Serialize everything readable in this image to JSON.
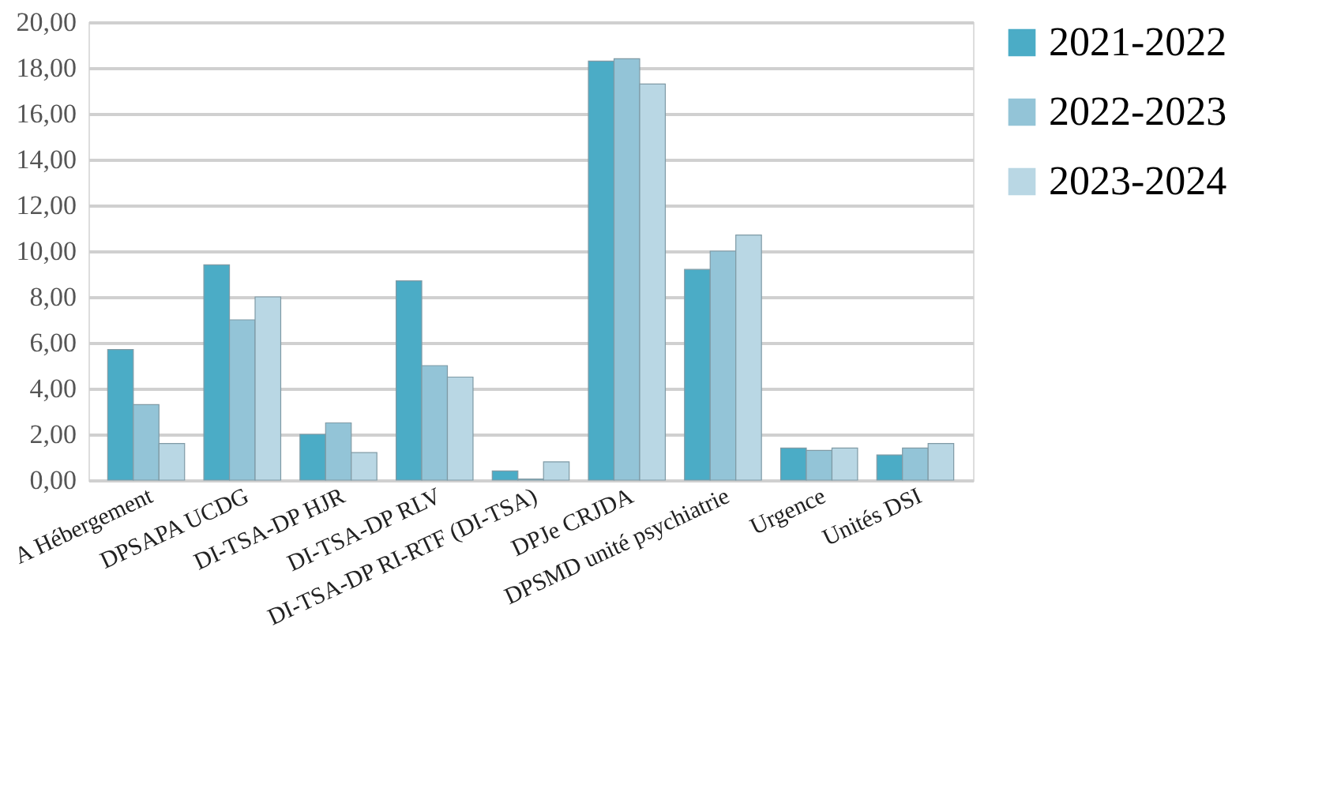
{
  "chart_data": {
    "type": "bar",
    "categories": [
      "A Hébergement",
      "DPSAPA UCDG",
      "DI-TSA-DP HJR",
      "DI-TSA-DP RLV",
      "DI-TSA-DP RI-RTF (DI-TSA)",
      "DPJe CRJDA",
      "DPSMD unité psychiatrie",
      "Urgence",
      "Unités DSI"
    ],
    "series": [
      {
        "name": "2021-2022",
        "color": "#4bacc6",
        "values": [
          5.7,
          9.4,
          2.0,
          8.7,
          0.4,
          18.3,
          9.2,
          1.4,
          1.1
        ]
      },
      {
        "name": "2022-2023",
        "color": "#93c4d7",
        "values": [
          3.3,
          7.0,
          2.5,
          5.0,
          0.05,
          18.4,
          10.0,
          1.3,
          1.4
        ]
      },
      {
        "name": "2023-2024",
        "color": "#b9d7e4",
        "values": [
          1.6,
          8.0,
          1.2,
          4.5,
          0.8,
          17.3,
          10.7,
          1.4,
          1.6
        ]
      }
    ],
    "ylim": [
      0,
      20
    ],
    "yticks": [
      {
        "value": 0,
        "label": "0,00"
      },
      {
        "value": 2,
        "label": "2,00"
      },
      {
        "value": 4,
        "label": "4,00"
      },
      {
        "value": 6,
        "label": "6,00"
      },
      {
        "value": 8,
        "label": "8,00"
      },
      {
        "value": 10,
        "label": "10,00"
      },
      {
        "value": 12,
        "label": "12,00"
      },
      {
        "value": 14,
        "label": "14,00"
      },
      {
        "value": 16,
        "label": "16,00"
      },
      {
        "value": 18,
        "label": "18,00"
      },
      {
        "value": 20,
        "label": "20,00"
      }
    ],
    "grid": "y",
    "legend": "right"
  }
}
